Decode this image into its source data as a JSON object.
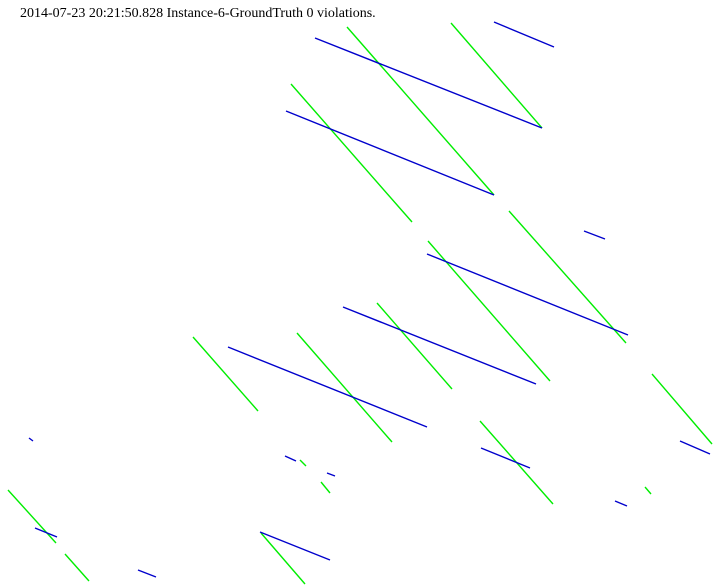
{
  "header": {
    "status_text": "2014-07-23 20:21:50.828 Instance-6-GroundTruth 0 violations."
  },
  "colors": {
    "background": "#ffffff",
    "green_segment": "#00ee00",
    "blue_segment": "#0000cc",
    "text": "#000000"
  }
}
